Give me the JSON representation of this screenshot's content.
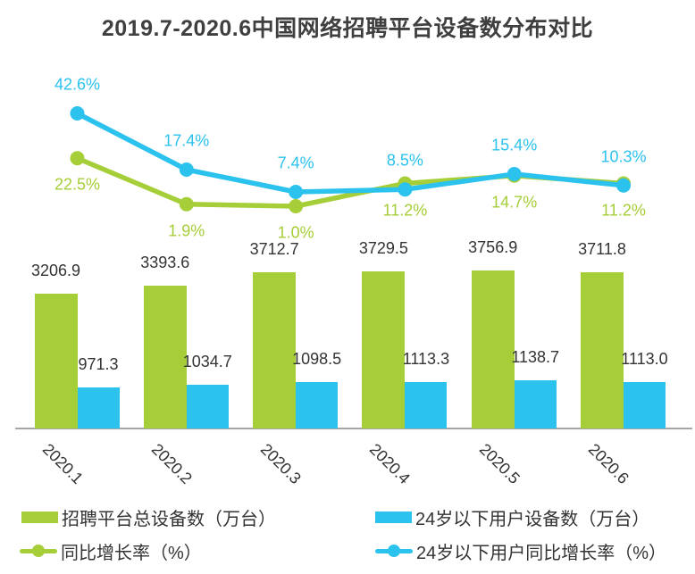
{
  "title": "2019.7-2020.6中国网络招聘平台设备数分布对比",
  "colors": {
    "green": "#a6ce38",
    "blue": "#2cc2ee",
    "title_text": "#3f3f3f",
    "label_text": "#333333",
    "axis_line": "#a6a6a6"
  },
  "chart_data": {
    "type": "combo: grouped bar + line",
    "title": "2019.7-2020.6中国网络招聘平台设备数分布对比",
    "categories": [
      "2020.1",
      "2020.2",
      "2020.3",
      "2020.4",
      "2020.5",
      "2020.6"
    ],
    "bar_series": [
      {
        "name": "招聘平台总设备数（万台）",
        "color": "green",
        "values": [
          3206.9,
          3393.6,
          3712.7,
          3729.5,
          3756.9,
          3711.8
        ]
      },
      {
        "name": "24岁以下用户设备数（万台）",
        "color": "blue",
        "values": [
          971.3,
          1034.7,
          1098.5,
          1113.3,
          1138.7,
          1113.0
        ]
      }
    ],
    "line_series": [
      {
        "name": "同比增长率（%）",
        "color": "green",
        "label_position": "below",
        "values": [
          22.5,
          1.9,
          1.0,
          11.2,
          14.7,
          11.2
        ]
      },
      {
        "name": "24岁以下用户同比增长率（%）",
        "color": "blue",
        "label_position": "above",
        "values": [
          42.6,
          17.4,
          7.4,
          8.5,
          15.4,
          10.3
        ]
      }
    ],
    "value_suffix_line": "%",
    "grid": false,
    "legend_position": "bottom",
    "x_axis_labels_rotated": true
  }
}
